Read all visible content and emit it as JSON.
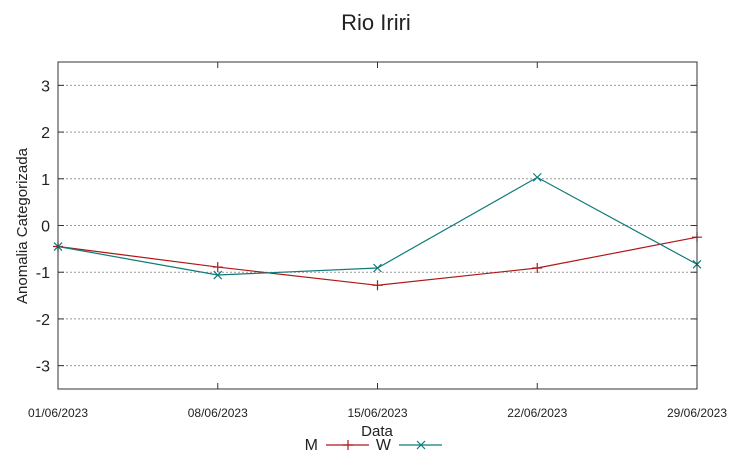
{
  "chart_data": {
    "type": "line",
    "title": "Rio Iriri",
    "xlabel": "Data",
    "ylabel": "Anomalia Categorizada",
    "categories": [
      "01/06/2023",
      "08/06/2023",
      "15/06/2023",
      "22/06/2023",
      "29/06/2023"
    ],
    "ylim": [
      -3.5,
      3.5
    ],
    "yticks": [
      -3,
      -2,
      -1,
      0,
      1,
      2,
      3
    ],
    "grid": true,
    "legend_position": "bottom",
    "series": [
      {
        "name": "M",
        "color": "#b01818",
        "marker": "plus",
        "values": [
          -0.45,
          -0.89,
          -1.28,
          -0.91,
          -0.25
        ]
      },
      {
        "name": "W",
        "color": "#0f7a7a",
        "marker": "cross",
        "values": [
          -0.45,
          -1.06,
          -0.91,
          1.03,
          -0.83
        ]
      }
    ]
  }
}
